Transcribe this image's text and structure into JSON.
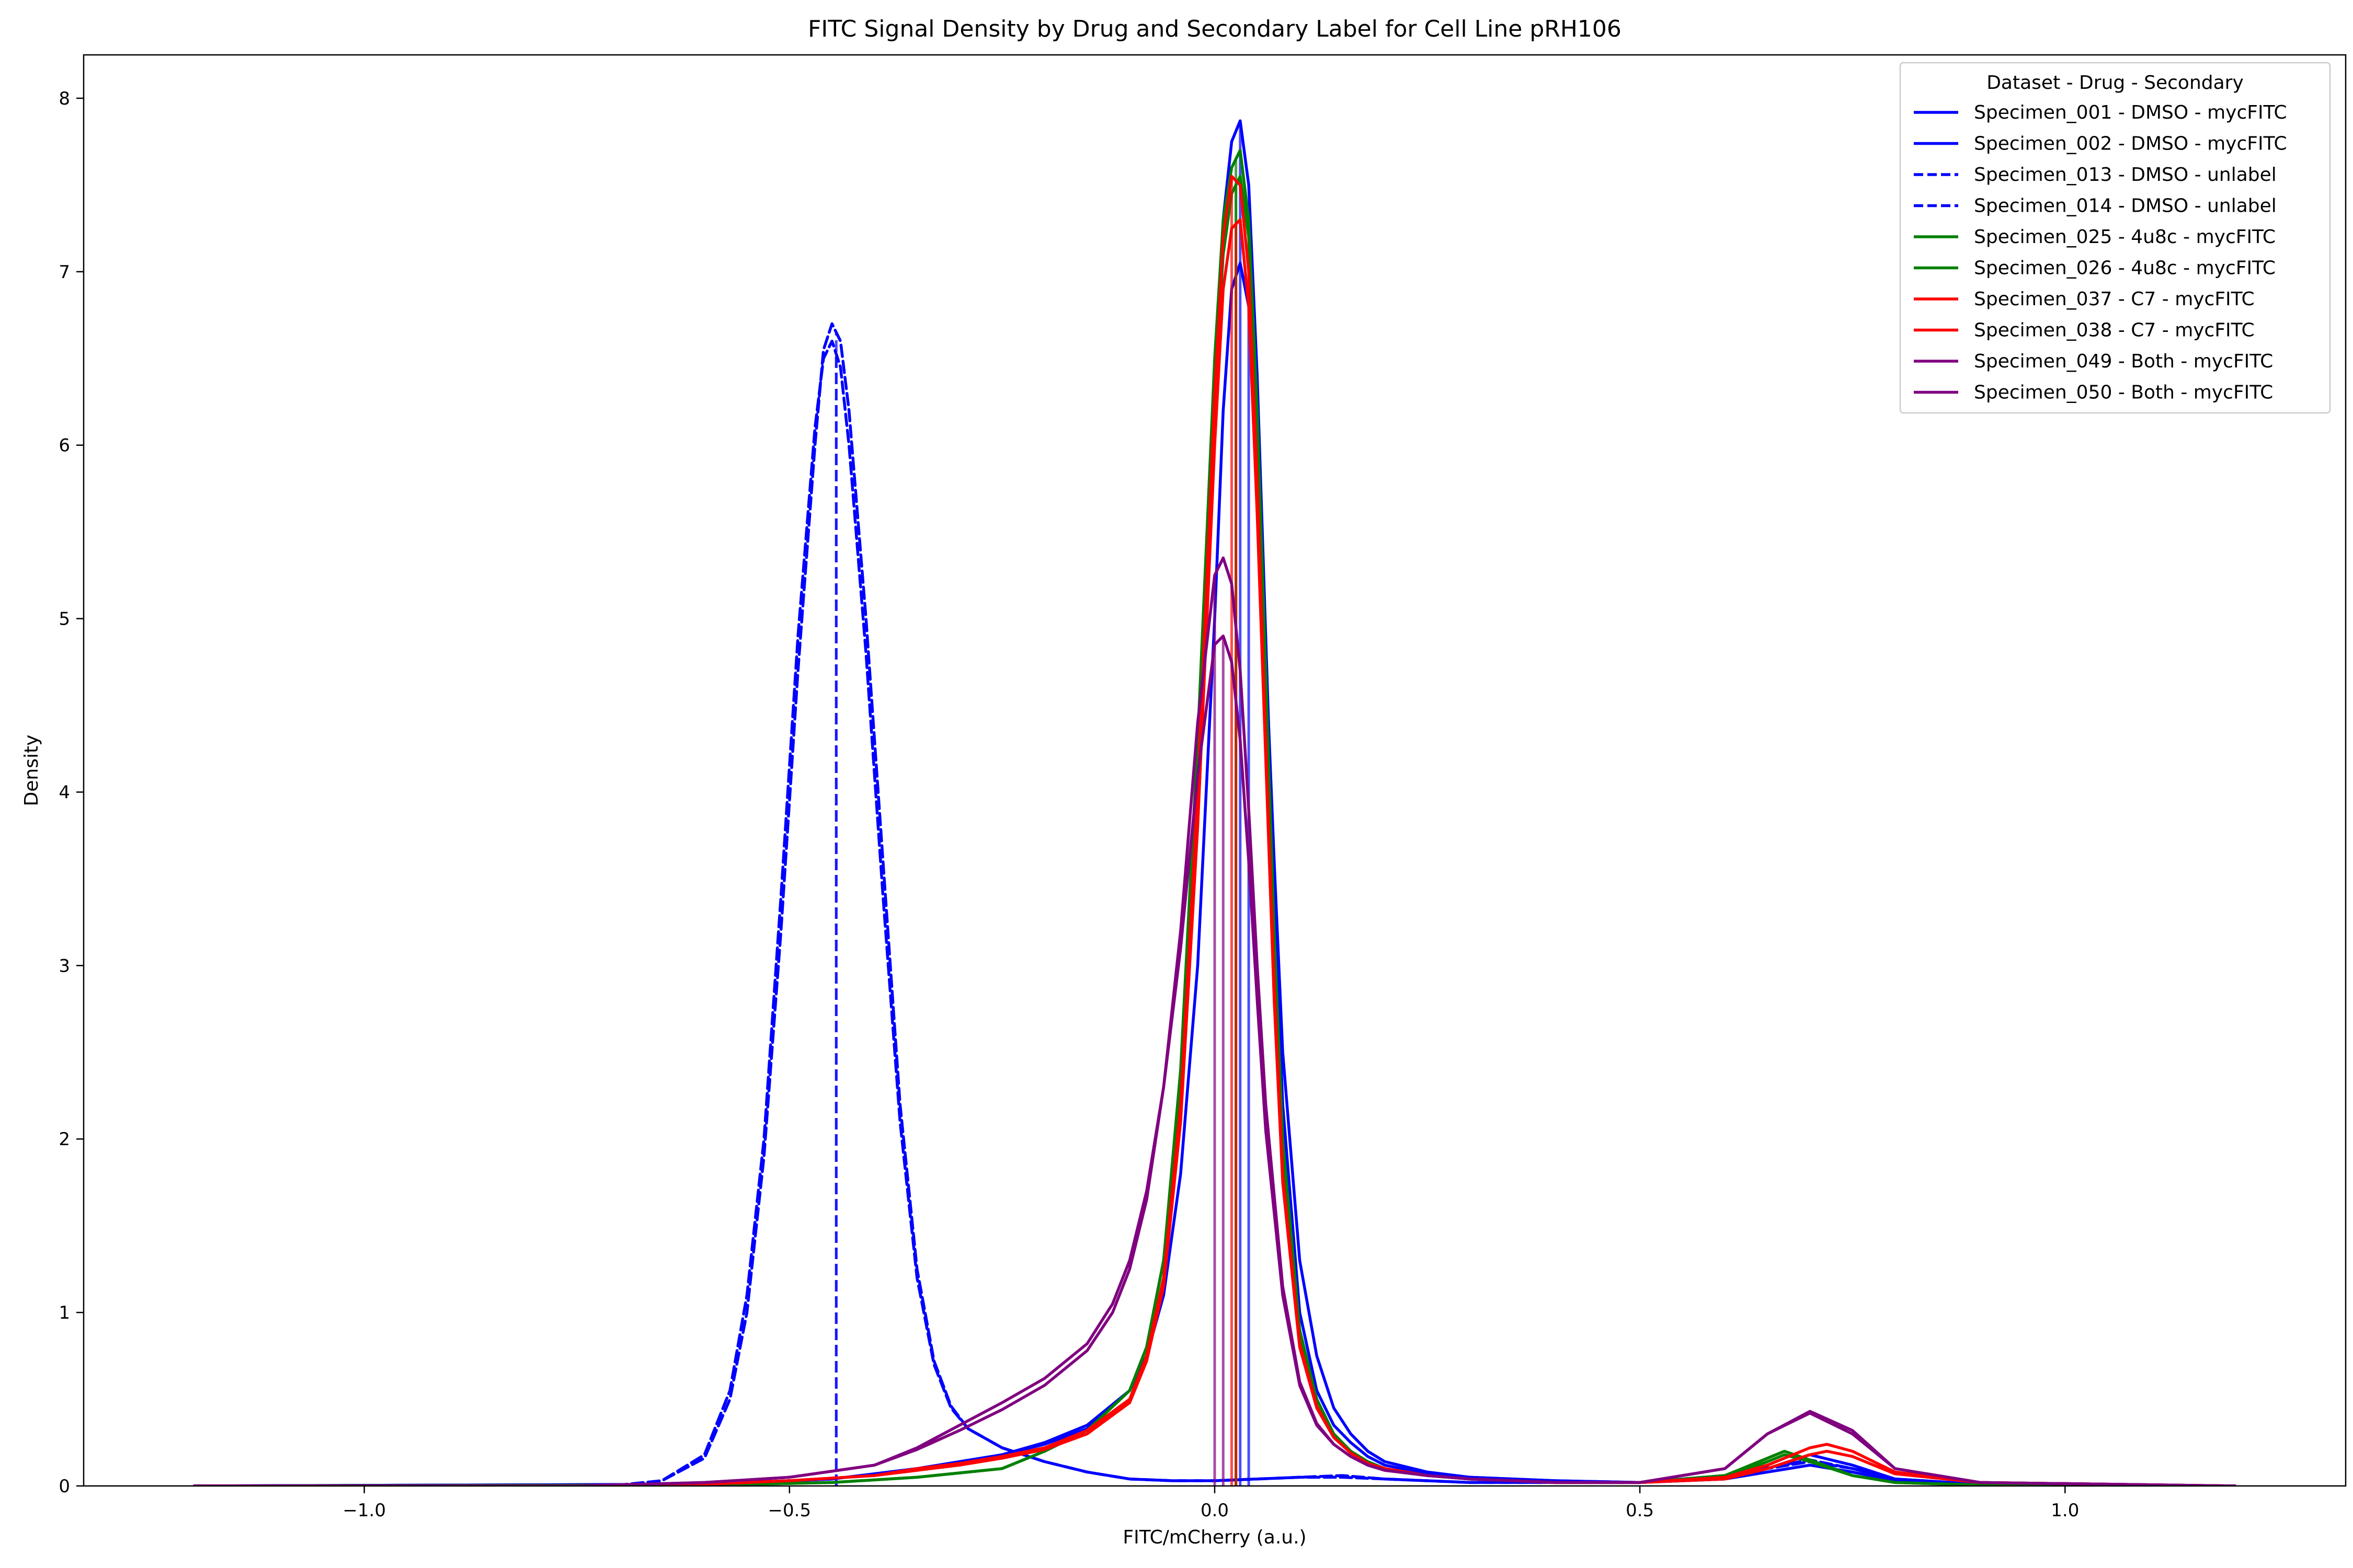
{
  "chart_data": {
    "type": "line",
    "title": "FITC Signal Density by Drug and Secondary Label for Cell Line pRH106",
    "xlabel": "FITC/mCherry (a.u.)",
    "ylabel": "Density",
    "xlim": [
      -1.33,
      1.33
    ],
    "ylim": [
      0,
      8.25
    ],
    "xticks": [
      -1.0,
      -0.5,
      0.0,
      0.5,
      1.0
    ],
    "xtick_labels": [
      "−1.0",
      "−0.5",
      "0.0",
      "0.5",
      "1.0"
    ],
    "yticks": [
      0,
      1,
      2,
      3,
      4,
      5,
      6,
      7,
      8
    ],
    "ytick_labels": [
      "0",
      "1",
      "2",
      "3",
      "4",
      "5",
      "6",
      "7",
      "8"
    ],
    "grid": false,
    "legend": {
      "title": "Dataset - Drug - Secondary",
      "placement": "top-right"
    },
    "series": [
      {
        "name": "Specimen_001 - DMSO - mycFITC",
        "color": "#0000ff",
        "dash": false,
        "median": 0.04,
        "x": [
          -1.2,
          -0.6,
          -0.45,
          -0.35,
          -0.25,
          -0.2,
          -0.15,
          -0.1,
          -0.08,
          -0.06,
          -0.04,
          -0.02,
          0.0,
          0.01,
          0.02,
          0.03,
          0.04,
          0.05,
          0.06,
          0.07,
          0.08,
          0.1,
          0.12,
          0.14,
          0.16,
          0.18,
          0.2,
          0.25,
          0.3,
          0.4,
          0.5,
          0.6,
          0.65,
          0.7,
          0.75,
          0.8,
          0.9,
          1.0,
          1.2
        ],
        "y": [
          0,
          0.01,
          0.04,
          0.1,
          0.18,
          0.25,
          0.35,
          0.55,
          0.75,
          1.1,
          1.8,
          3.0,
          5.0,
          6.2,
          6.9,
          7.05,
          6.8,
          6.0,
          4.8,
          3.6,
          2.5,
          1.3,
          0.75,
          0.45,
          0.3,
          0.2,
          0.14,
          0.08,
          0.05,
          0.03,
          0.02,
          0.04,
          0.1,
          0.18,
          0.12,
          0.04,
          0.01,
          0.005,
          0
        ]
      },
      {
        "name": "Specimen_002 - DMSO - mycFITC",
        "color": "#0000ff",
        "dash": false,
        "median": 0.03,
        "x": [
          -1.2,
          -0.6,
          -0.45,
          -0.35,
          -0.25,
          -0.2,
          -0.15,
          -0.1,
          -0.08,
          -0.06,
          -0.04,
          -0.02,
          0.0,
          0.01,
          0.02,
          0.03,
          0.04,
          0.05,
          0.06,
          0.07,
          0.08,
          0.1,
          0.12,
          0.14,
          0.16,
          0.18,
          0.2,
          0.25,
          0.3,
          0.4,
          0.5,
          0.6,
          0.65,
          0.7,
          0.75,
          0.8,
          0.9,
          1.0,
          1.2
        ],
        "y": [
          0,
          0.01,
          0.04,
          0.1,
          0.18,
          0.24,
          0.33,
          0.55,
          0.8,
          1.3,
          2.3,
          4.0,
          6.3,
          7.3,
          7.75,
          7.87,
          7.5,
          6.4,
          4.9,
          3.4,
          2.2,
          1.0,
          0.55,
          0.35,
          0.25,
          0.17,
          0.12,
          0.07,
          0.05,
          0.03,
          0.02,
          0.04,
          0.08,
          0.12,
          0.08,
          0.03,
          0.01,
          0.005,
          0
        ]
      },
      {
        "name": "Specimen_013 - DMSO - unlabel",
        "color": "#0000ff",
        "dash": true,
        "median": -0.445,
        "x": [
          -1.2,
          -0.7,
          -0.65,
          -0.6,
          -0.57,
          -0.55,
          -0.53,
          -0.51,
          -0.49,
          -0.47,
          -0.46,
          -0.45,
          -0.44,
          -0.43,
          -0.41,
          -0.39,
          -0.37,
          -0.35,
          -0.33,
          -0.31,
          -0.29,
          -0.25,
          -0.2,
          -0.15,
          -0.1,
          -0.05,
          0.0,
          0.05,
          0.1,
          0.15,
          0.2,
          0.3,
          0.5,
          0.6,
          0.7,
          0.75,
          0.8,
          0.9,
          1.2
        ],
        "y": [
          0,
          0.005,
          0.03,
          0.18,
          0.55,
          1.1,
          2.0,
          3.4,
          4.9,
          6.1,
          6.5,
          6.6,
          6.45,
          6.0,
          4.8,
          3.4,
          2.1,
          1.2,
          0.7,
          0.45,
          0.33,
          0.22,
          0.14,
          0.08,
          0.04,
          0.03,
          0.03,
          0.04,
          0.05,
          0.05,
          0.04,
          0.02,
          0.02,
          0.06,
          0.14,
          0.1,
          0.04,
          0.01,
          0
        ]
      },
      {
        "name": "Specimen_014 - DMSO - unlabel",
        "color": "#0000ff",
        "dash": true,
        "median": -0.445,
        "x": [
          -1.2,
          -0.7,
          -0.65,
          -0.6,
          -0.57,
          -0.55,
          -0.53,
          -0.51,
          -0.49,
          -0.47,
          -0.46,
          -0.45,
          -0.44,
          -0.43,
          -0.41,
          -0.39,
          -0.37,
          -0.35,
          -0.33,
          -0.31,
          -0.29,
          -0.25,
          -0.2,
          -0.15,
          -0.1,
          -0.05,
          0.0,
          0.05,
          0.1,
          0.15,
          0.2,
          0.3,
          0.5,
          0.6,
          0.7,
          0.75,
          0.8,
          0.9,
          1.2
        ],
        "y": [
          0,
          0.005,
          0.03,
          0.16,
          0.5,
          1.0,
          1.9,
          3.2,
          4.7,
          6.0,
          6.55,
          6.7,
          6.6,
          6.2,
          5.0,
          3.6,
          2.2,
          1.25,
          0.72,
          0.46,
          0.33,
          0.22,
          0.14,
          0.08,
          0.04,
          0.03,
          0.03,
          0.04,
          0.05,
          0.06,
          0.04,
          0.02,
          0.02,
          0.06,
          0.15,
          0.1,
          0.04,
          0.01,
          0
        ]
      },
      {
        "name": "Specimen_025 - 4u8c - mycFITC",
        "color": "#008000",
        "dash": false,
        "median": 0.025,
        "x": [
          -1.2,
          -0.6,
          -0.45,
          -0.35,
          -0.25,
          -0.2,
          -0.15,
          -0.1,
          -0.08,
          -0.06,
          -0.04,
          -0.02,
          0.0,
          0.01,
          0.02,
          0.03,
          0.04,
          0.05,
          0.06,
          0.07,
          0.08,
          0.1,
          0.12,
          0.14,
          0.16,
          0.18,
          0.2,
          0.25,
          0.3,
          0.4,
          0.5,
          0.6,
          0.65,
          0.67,
          0.7,
          0.75,
          0.8,
          0.9,
          1.2
        ],
        "y": [
          0,
          0.005,
          0.02,
          0.05,
          0.1,
          0.2,
          0.32,
          0.55,
          0.8,
          1.3,
          2.4,
          4.3,
          6.5,
          7.3,
          7.6,
          7.7,
          7.3,
          6.2,
          4.7,
          3.2,
          2.0,
          0.9,
          0.5,
          0.3,
          0.2,
          0.14,
          0.1,
          0.06,
          0.04,
          0.02,
          0.02,
          0.06,
          0.16,
          0.2,
          0.15,
          0.06,
          0.02,
          0.005,
          0
        ]
      },
      {
        "name": "Specimen_026 - 4u8c - mycFITC",
        "color": "#008000",
        "dash": false,
        "median": 0.025,
        "x": [
          -1.2,
          -0.6,
          -0.45,
          -0.35,
          -0.25,
          -0.2,
          -0.15,
          -0.1,
          -0.08,
          -0.06,
          -0.04,
          -0.02,
          0.0,
          0.01,
          0.02,
          0.03,
          0.04,
          0.05,
          0.06,
          0.07,
          0.08,
          0.1,
          0.12,
          0.14,
          0.16,
          0.18,
          0.2,
          0.25,
          0.3,
          0.4,
          0.5,
          0.6,
          0.65,
          0.67,
          0.7,
          0.75,
          0.8,
          0.9,
          1.2
        ],
        "y": [
          0,
          0.005,
          0.02,
          0.05,
          0.1,
          0.2,
          0.32,
          0.55,
          0.8,
          1.3,
          2.3,
          4.1,
          6.3,
          7.1,
          7.45,
          7.55,
          7.2,
          6.1,
          4.6,
          3.1,
          1.95,
          0.88,
          0.5,
          0.3,
          0.2,
          0.14,
          0.1,
          0.06,
          0.04,
          0.02,
          0.02,
          0.05,
          0.14,
          0.18,
          0.14,
          0.06,
          0.02,
          0.005,
          0
        ]
      },
      {
        "name": "Specimen_037 - C7 - mycFITC",
        "color": "#ff0000",
        "dash": false,
        "median": 0.02,
        "x": [
          -1.2,
          -0.75,
          -0.6,
          -0.5,
          -0.4,
          -0.35,
          -0.3,
          -0.25,
          -0.2,
          -0.15,
          -0.1,
          -0.08,
          -0.06,
          -0.04,
          -0.02,
          0.0,
          0.01,
          0.02,
          0.03,
          0.04,
          0.05,
          0.06,
          0.07,
          0.08,
          0.1,
          0.12,
          0.14,
          0.16,
          0.18,
          0.2,
          0.25,
          0.3,
          0.4,
          0.5,
          0.6,
          0.65,
          0.7,
          0.72,
          0.75,
          0.8,
          0.9,
          1.2
        ],
        "y": [
          0,
          0.0,
          0.01,
          0.03,
          0.06,
          0.1,
          0.13,
          0.17,
          0.22,
          0.32,
          0.5,
          0.75,
          1.2,
          2.2,
          4.0,
          6.3,
          7.2,
          7.55,
          7.5,
          7.0,
          5.8,
          4.3,
          2.9,
          1.8,
          0.82,
          0.46,
          0.28,
          0.19,
          0.13,
          0.1,
          0.06,
          0.04,
          0.02,
          0.02,
          0.05,
          0.12,
          0.22,
          0.24,
          0.2,
          0.08,
          0.02,
          0
        ]
      },
      {
        "name": "Specimen_038 - C7 - mycFITC",
        "color": "#ff0000",
        "dash": false,
        "median": 0.025,
        "x": [
          -1.2,
          -0.75,
          -0.6,
          -0.5,
          -0.4,
          -0.35,
          -0.3,
          -0.25,
          -0.2,
          -0.15,
          -0.1,
          -0.08,
          -0.06,
          -0.04,
          -0.02,
          0.0,
          0.01,
          0.02,
          0.03,
          0.04,
          0.05,
          0.06,
          0.07,
          0.08,
          0.1,
          0.12,
          0.14,
          0.16,
          0.18,
          0.2,
          0.25,
          0.3,
          0.4,
          0.5,
          0.6,
          0.65,
          0.7,
          0.72,
          0.75,
          0.8,
          0.9,
          1.2
        ],
        "y": [
          0,
          0.0,
          0.01,
          0.03,
          0.06,
          0.09,
          0.12,
          0.16,
          0.21,
          0.3,
          0.48,
          0.72,
          1.15,
          2.1,
          3.8,
          6.0,
          6.9,
          7.25,
          7.3,
          6.8,
          5.6,
          4.2,
          2.8,
          1.75,
          0.8,
          0.45,
          0.28,
          0.19,
          0.13,
          0.1,
          0.06,
          0.04,
          0.02,
          0.02,
          0.04,
          0.1,
          0.18,
          0.2,
          0.17,
          0.07,
          0.02,
          0
        ]
      },
      {
        "name": "Specimen_049 - Both - mycFITC",
        "color": "#800080",
        "dash": false,
        "median": 0.01,
        "x": [
          -1.2,
          -0.75,
          -0.6,
          -0.5,
          -0.4,
          -0.35,
          -0.3,
          -0.25,
          -0.2,
          -0.15,
          -0.12,
          -0.1,
          -0.08,
          -0.06,
          -0.04,
          -0.02,
          0.0,
          0.01,
          0.02,
          0.03,
          0.04,
          0.05,
          0.06,
          0.08,
          0.1,
          0.12,
          0.14,
          0.16,
          0.18,
          0.2,
          0.25,
          0.3,
          0.4,
          0.5,
          0.6,
          0.65,
          0.7,
          0.75,
          0.8,
          0.9,
          1.2
        ],
        "y": [
          0,
          0.0,
          0.02,
          0.05,
          0.12,
          0.22,
          0.35,
          0.48,
          0.62,
          0.82,
          1.05,
          1.3,
          1.7,
          2.3,
          3.1,
          4.1,
          4.85,
          4.9,
          4.75,
          4.3,
          3.6,
          2.8,
          2.05,
          1.1,
          0.58,
          0.35,
          0.24,
          0.17,
          0.12,
          0.09,
          0.06,
          0.04,
          0.02,
          0.02,
          0.1,
          0.3,
          0.42,
          0.3,
          0.1,
          0.02,
          0
        ]
      },
      {
        "name": "Specimen_050 - Both - mycFITC",
        "color": "#800080",
        "dash": false,
        "median": 0.0,
        "x": [
          -1.2,
          -0.75,
          -0.6,
          -0.5,
          -0.4,
          -0.35,
          -0.3,
          -0.25,
          -0.2,
          -0.15,
          -0.12,
          -0.1,
          -0.08,
          -0.06,
          -0.04,
          -0.02,
          0.0,
          0.01,
          0.02,
          0.03,
          0.04,
          0.05,
          0.06,
          0.08,
          0.1,
          0.12,
          0.14,
          0.16,
          0.18,
          0.2,
          0.25,
          0.3,
          0.4,
          0.5,
          0.6,
          0.65,
          0.7,
          0.75,
          0.8,
          0.9,
          1.2
        ],
        "y": [
          0,
          0.0,
          0.02,
          0.05,
          0.12,
          0.21,
          0.32,
          0.44,
          0.58,
          0.78,
          1.0,
          1.25,
          1.65,
          2.3,
          3.2,
          4.4,
          5.25,
          5.35,
          5.2,
          4.7,
          3.9,
          3.0,
          2.2,
          1.15,
          0.6,
          0.36,
          0.24,
          0.17,
          0.12,
          0.09,
          0.06,
          0.04,
          0.02,
          0.02,
          0.1,
          0.3,
          0.43,
          0.32,
          0.1,
          0.02,
          0
        ]
      }
    ]
  }
}
